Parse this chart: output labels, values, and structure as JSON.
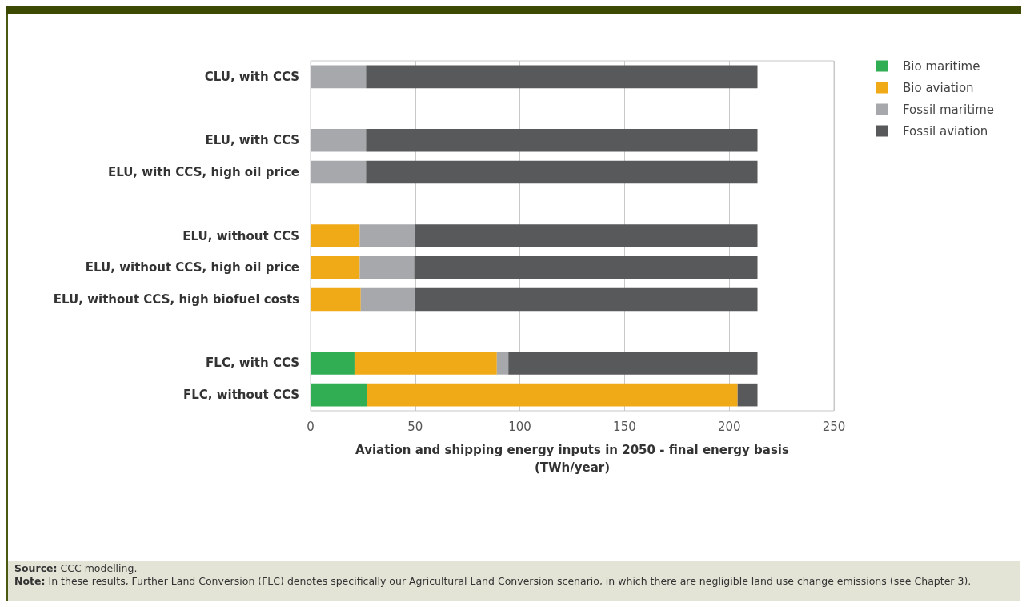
{
  "chart_data": {
    "type": "bar",
    "orientation": "horizontal",
    "stacked": true,
    "categories": [
      "CLU, with CCS",
      null,
      "ELU, with CCS",
      "ELU, with CCS, high oil price",
      null,
      "ELU, without CCS",
      "ELU, without CCS, high oil price",
      "ELU, without CCS, high biofuel costs",
      null,
      "FLC, with CCS",
      "FLC, without CCS"
    ],
    "series": [
      {
        "name": "Bio maritime",
        "color": "#31ad54",
        "values": [
          0,
          null,
          0,
          0,
          null,
          0,
          0,
          0,
          null,
          21,
          27
        ]
      },
      {
        "name": "Bio aviation",
        "color": "#f0aa18",
        "values": [
          0,
          null,
          0,
          0,
          null,
          23.5,
          23.5,
          24,
          null,
          68,
          177
        ]
      },
      {
        "name": "Fossil maritime",
        "color": "#a7a8ab",
        "values": [
          26.5,
          null,
          26.5,
          26.5,
          null,
          26.5,
          26,
          26,
          null,
          5.5,
          0
        ]
      },
      {
        "name": "Fossil aviation",
        "color": "#58595b",
        "values": [
          187,
          null,
          187,
          187,
          null,
          163.5,
          164,
          163.5,
          null,
          119,
          9.5
        ]
      }
    ],
    "xlim": [
      0,
      250
    ],
    "xticks": [
      0,
      50,
      100,
      150,
      200,
      250
    ],
    "xlabel": "Aviation and shipping energy inputs in 2050 - final energy basis\n(TWh/year)",
    "grid": "x",
    "legend": "top right",
    "annotations": [
      "Source: CCC modelling.",
      "Note: In these results, Further Land Conversion (FLC) denotes specifically our Agricultural Land Conversion scenario, in which there are negligible land use change emissions (see Chapter 3)."
    ]
  }
}
